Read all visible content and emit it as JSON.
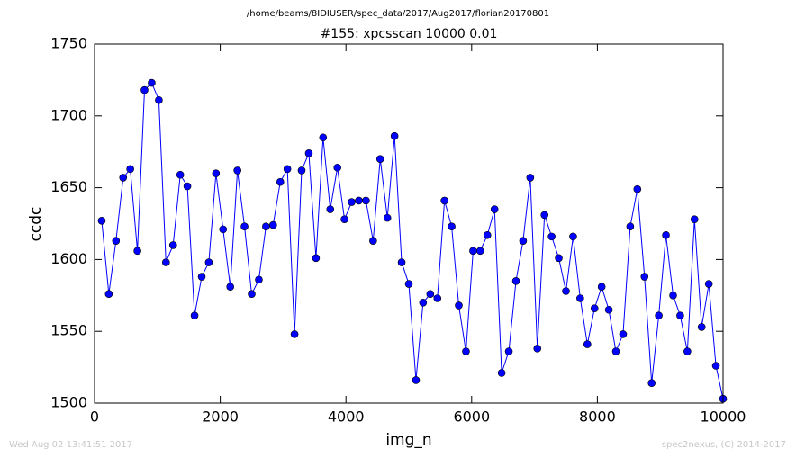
{
  "chart_data": {
    "type": "line",
    "suptitle": "/home/beams/8IDIUSER/spec_data/2017/Aug2017/florian20170801",
    "title": "#155: xpcsscan 10000 0.01",
    "xlabel": "img_n",
    "ylabel": "ccdc",
    "footer_left": "Wed Aug 02 13:41:51 2017",
    "footer_right": "spec2nexus, (C) 2014-2017",
    "color": "#0000ff",
    "marker": true,
    "x": [
      114,
      227,
      341,
      455,
      568,
      682,
      795,
      909,
      1023,
      1136,
      1250,
      1364,
      1477,
      1591,
      1705,
      1818,
      1932,
      2045,
      2159,
      2273,
      2386,
      2500,
      2614,
      2727,
      2841,
      2955,
      3068,
      3182,
      3295,
      3409,
      3523,
      3636,
      3750,
      3864,
      3977,
      4091,
      4205,
      4318,
      4432,
      4545,
      4659,
      4773,
      4886,
      5000,
      5114,
      5227,
      5341,
      5455,
      5568,
      5682,
      5795,
      5909,
      6023,
      6136,
      6250,
      6364,
      6477,
      6591,
      6705,
      6818,
      6932,
      7045,
      7159,
      7273,
      7386,
      7500,
      7614,
      7727,
      7841,
      7955,
      8068,
      8182,
      8295,
      8409,
      8523,
      8636,
      8750,
      8864,
      8977,
      9091,
      9205,
      9318,
      9432,
      9545,
      9659,
      9773,
      9886,
      10000
    ],
    "values": [
      1627,
      1576,
      1613,
      1657,
      1663,
      1606,
      1718,
      1723,
      1711,
      1598,
      1610,
      1659,
      1651,
      1561,
      1588,
      1598,
      1660,
      1621,
      1581,
      1662,
      1623,
      1576,
      1586,
      1623,
      1624,
      1654,
      1663,
      1548,
      1662,
      1674,
      1601,
      1685,
      1635,
      1664,
      1628,
      1640,
      1641,
      1641,
      1613,
      1670,
      1629,
      1686,
      1598,
      1583,
      1516,
      1570,
      1576,
      1573,
      1641,
      1623,
      1568,
      1536,
      1606,
      1606,
      1617,
      1635,
      1521,
      1536,
      1585,
      1613,
      1657,
      1538,
      1631,
      1616,
      1601,
      1578,
      1616,
      1573,
      1541,
      1566,
      1581,
      1565,
      1536,
      1548,
      1623,
      1649,
      1588,
      1514,
      1561,
      1617,
      1575,
      1561,
      1536,
      1628,
      1553,
      1583,
      1526,
      1503
    ],
    "xlim": [
      0,
      10000
    ],
    "xticks": [
      0,
      2000,
      4000,
      6000,
      8000,
      10000
    ],
    "ylim": [
      1500,
      1750
    ],
    "yticks": [
      1500,
      1550,
      1600,
      1650,
      1700,
      1750
    ]
  }
}
